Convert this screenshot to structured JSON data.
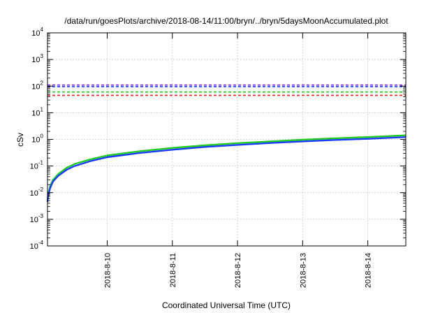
{
  "chart_data": {
    "type": "line",
    "title": "/data/run/goesPlots/archive/2018-08-14/11:00/bryn/../bryn/5daysMoonAccumulated.plot",
    "xlabel": "Coordinated Universal Time (UTC)",
    "ylabel": "cSv",
    "yscale": "log",
    "ylim": [
      0.0001,
      10000
    ],
    "xlim": [
      "2018-08-09 02:00",
      "2018-08-14 14:00"
    ],
    "grid": true,
    "x_tick_labels": [
      "2018-8-10",
      "2018-8-11",
      "2018-8-12",
      "2018-8-13",
      "2018-8-14"
    ],
    "y_tick_labels": [
      {
        "base": "10",
        "exp": "-4"
      },
      {
        "base": "10",
        "exp": "-3"
      },
      {
        "base": "10",
        "exp": "-2"
      },
      {
        "base": "10",
        "exp": "-1"
      },
      {
        "base": "10",
        "exp": "0"
      },
      {
        "base": "10",
        "exp": "1"
      },
      {
        "base": "10",
        "exp": "2"
      },
      {
        "base": "10",
        "exp": "3"
      },
      {
        "base": "10",
        "exp": "4"
      }
    ],
    "thresholds": [
      {
        "value": 110,
        "color": "#8b2be2",
        "style": "dashed"
      },
      {
        "value": 95,
        "color": "#1a3cff",
        "style": "dashed"
      },
      {
        "value": 60,
        "color": "#22cc22",
        "style": "dashed"
      },
      {
        "value": 45,
        "color": "#ee2222",
        "style": "dashed"
      }
    ],
    "series": [
      {
        "color": "#22cc22",
        "x": [
          "2018-08-09 02:00",
          "2018-08-09 02:15",
          "2018-08-09 03:00",
          "2018-08-09 04:00",
          "2018-08-09 06:00",
          "2018-08-09 09:00",
          "2018-08-09 12:00",
          "2018-08-09 18:00",
          "2018-08-10 00:00",
          "2018-08-10 12:00",
          "2018-08-11 00:00",
          "2018-08-11 12:00",
          "2018-08-12 00:00",
          "2018-08-12 12:00",
          "2018-08-13 00:00",
          "2018-08-13 12:00",
          "2018-08-14 00:00",
          "2018-08-14 14:00"
        ],
        "y": [
          0.0055,
          0.009,
          0.018,
          0.03,
          0.05,
          0.085,
          0.12,
          0.18,
          0.25,
          0.36,
          0.48,
          0.6,
          0.72,
          0.84,
          0.97,
          1.1,
          1.22,
          1.42
        ]
      },
      {
        "color": "#1a3cff",
        "x": [
          "2018-08-09 02:00",
          "2018-08-09 02:15",
          "2018-08-09 03:00",
          "2018-08-09 04:00",
          "2018-08-09 06:00",
          "2018-08-09 09:00",
          "2018-08-09 12:00",
          "2018-08-09 18:00",
          "2018-08-10 00:00",
          "2018-08-10 12:00",
          "2018-08-11 00:00",
          "2018-08-11 12:00",
          "2018-08-12 00:00",
          "2018-08-12 12:00",
          "2018-08-13 00:00",
          "2018-08-13 12:00",
          "2018-08-14 00:00",
          "2018-08-14 14:00"
        ],
        "y": [
          0.0045,
          0.0075,
          0.015,
          0.026,
          0.043,
          0.072,
          0.1,
          0.155,
          0.215,
          0.31,
          0.41,
          0.52,
          0.62,
          0.73,
          0.84,
          0.95,
          1.05,
          1.22
        ]
      }
    ]
  }
}
